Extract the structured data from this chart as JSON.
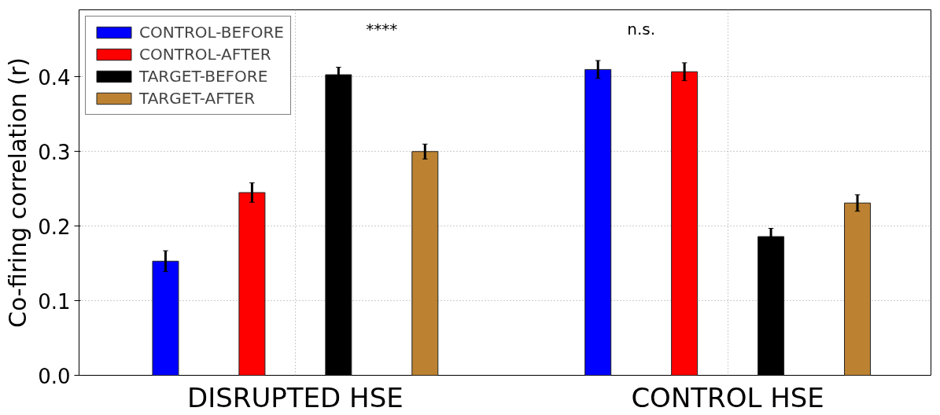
{
  "chart_data": {
    "type": "bar",
    "ylabel": "Co-firing correlation (r)",
    "categories": [
      "DISRUPTED HSE",
      "CONTROL HSE"
    ],
    "series": [
      {
        "name": "CONTROL-BEFORE",
        "color": "#0000ff",
        "values": [
          0.153,
          0.41
        ],
        "errors": [
          0.014,
          0.012
        ]
      },
      {
        "name": "CONTROL-AFTER",
        "color": "#ff0000",
        "values": [
          0.245,
          0.407
        ],
        "errors": [
          0.013,
          0.012
        ]
      },
      {
        "name": "TARGET-BEFORE",
        "color": "#000000",
        "values": [
          0.403,
          0.186
        ],
        "errors": [
          0.01,
          0.011
        ]
      },
      {
        "name": "TARGET-AFTER",
        "color": "#bc8232",
        "values": [
          0.3,
          0.231
        ],
        "errors": [
          0.01,
          0.011
        ]
      }
    ],
    "ylim": [
      0,
      0.49
    ],
    "yticks": [
      {
        "value": 0,
        "label": "0.0"
      },
      0.1,
      0.2,
      0.3,
      0.4
    ],
    "annotations": [
      "****",
      "n.s."
    ],
    "grid": true,
    "legend": "top left"
  }
}
